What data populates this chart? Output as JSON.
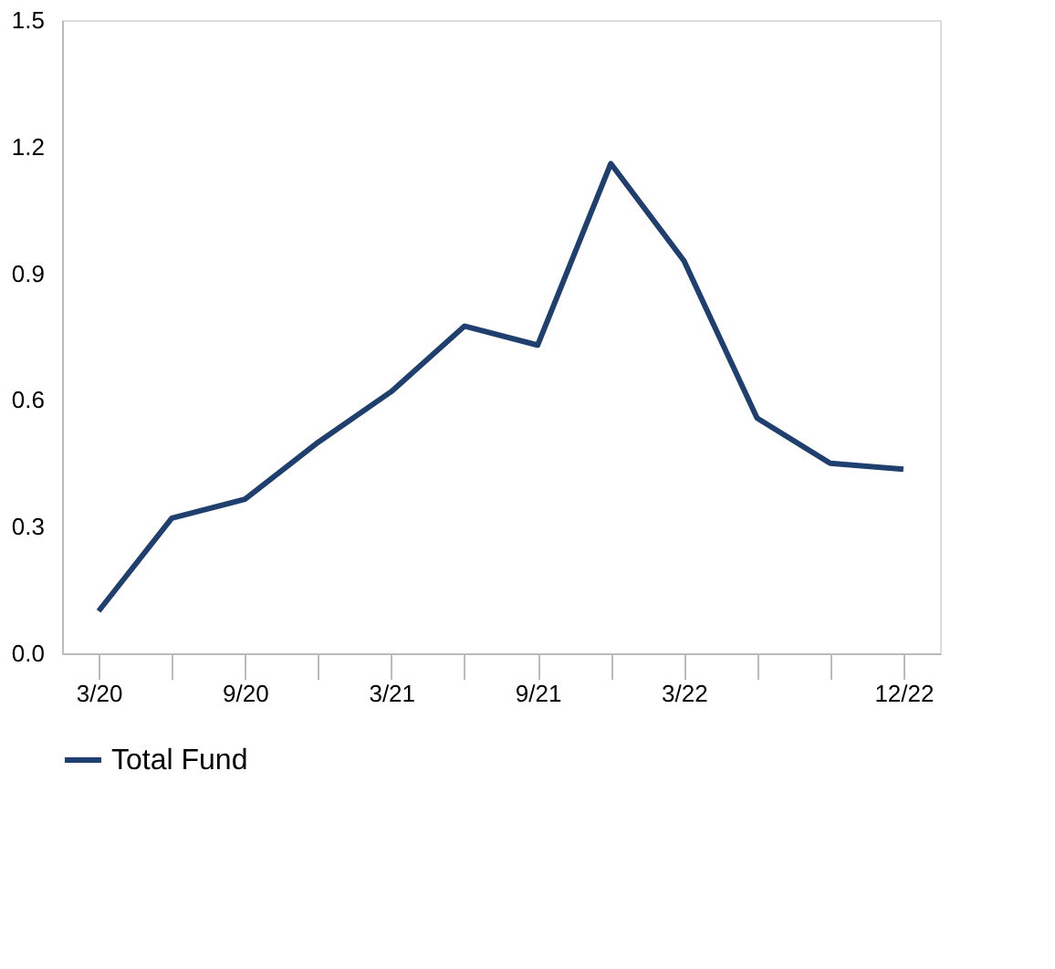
{
  "chart_data": {
    "type": "line",
    "categories": [
      "3/20",
      null,
      "9/20",
      null,
      "3/21",
      null,
      "9/21",
      null,
      "3/22",
      null,
      null,
      "12/22"
    ],
    "series": [
      {
        "name": "Total Fund",
        "color": "#1f3f6e",
        "values": [
          0.1,
          0.32,
          0.365,
          0.5,
          0.62,
          0.775,
          0.73,
          1.16,
          0.93,
          0.557,
          0.45,
          0.436
        ]
      }
    ],
    "ylim": [
      0,
      1.5
    ],
    "yticks": [
      {
        "value": 0,
        "label": "0.0"
      },
      0.3,
      0.6,
      0.9,
      1.2,
      1.5
    ],
    "grid": false,
    "legend": "bottom",
    "marker": "none",
    "line_style": "solid"
  }
}
